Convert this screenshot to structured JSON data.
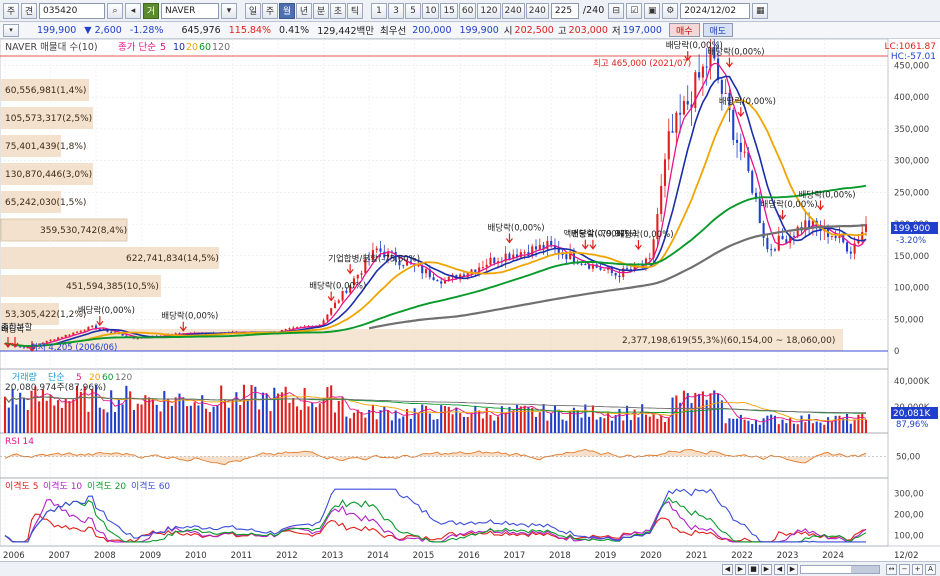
{
  "toolbar": {
    "mode_label": "주",
    "code_prefix": "견",
    "code": "035420",
    "search_icon": "magnifier-icon",
    "name_tag": "거",
    "name": "NAVER",
    "period_buttons": [
      "일",
      "주",
      "월",
      "년",
      "분",
      "초",
      "틱"
    ],
    "active_period": "월",
    "interval_buttons": [
      "1",
      "3",
      "5",
      "10",
      "15",
      "60",
      "120",
      "240",
      "240"
    ],
    "bar_count": "225",
    "bar_total": "/240",
    "date": "2024/12/02"
  },
  "quote": {
    "price": "199,900",
    "change": "▼  2,600",
    "change_rate": "-1.28%",
    "volume": "645,976",
    "vol_ratio": "115.84%",
    "turnover_rate": "0.41%",
    "amount": "129,442백만",
    "best_ask_label": "최우선",
    "best_ask": "200,000",
    "best_bid": "199,900",
    "open_label": "시",
    "open": "202,500",
    "high_label": "고",
    "high": "203,000",
    "low_label": "저",
    "low": "197,000",
    "buy_label": "매수",
    "sell_label": "매도"
  },
  "price_panel": {
    "legend_name": "NAVER 매물대 수(10)",
    "legend_ma_title": "종가 단순",
    "legend_ma_periods": [
      "5",
      "10",
      "20",
      "60",
      "120"
    ],
    "lc": "LC:1061.87",
    "hc": "HC:-57.01",
    "y_ticks": [
      "450,000",
      "400,000",
      "350,000",
      "300,000",
      "250,000",
      "200,000",
      "150,000",
      "100,000",
      "50,000",
      "0"
    ],
    "last_price": "199,900",
    "last_rate": "-3.20%",
    "high_note": "최고 465,000 (2021/07)",
    "profile_labels": [
      "60,556,981(1,4%)",
      "105,573,317(2,5%)",
      "75,401,439(1,8%)",
      "130,870,446(3,0%)",
      "65,242,030(1,5%)",
      "359,530,742(8,4%)",
      "622,741,834(14,5%)",
      "451,594,385(10,5%)",
      "53,305,422(1,2%)",
      "2,377,198,619(55,3%)(60,154,00 ~ 18,060,00)"
    ],
    "low_note": "최저 4,205 (2006/06)",
    "left_marks": [
      "종합분할",
      "배당락"
    ],
    "events": [
      {
        "text": "배당락(0,00%)",
        "date": "2008/02"
      },
      {
        "text": "배당락(0,00%)",
        "date": "2009/12"
      },
      {
        "text": "배당락(0,00%)",
        "date": "2013/03"
      },
      {
        "text": "기업합병/분할(-75,60%)",
        "date": "2013/08"
      },
      {
        "text": "배당락(0,00%)",
        "date": "2017/02"
      },
      {
        "text": "액면분할(-79,97%)",
        "date": "2018/10"
      },
      {
        "text": "배당락(0,00%)",
        "date": "2018/12"
      },
      {
        "text": "배당락(0,00%)",
        "date": "2019/12"
      },
      {
        "text": "배당락(0,00%)",
        "date": "2021/01"
      },
      {
        "text": "배당락(0,00%)",
        "date": "2021/12"
      },
      {
        "text": "배당락(0,00%)",
        "date": "2022/03"
      },
      {
        "text": "배당락(0,00%)",
        "date": "2023/02"
      },
      {
        "text": "배당락(0,00%)",
        "date": "2023/12"
      }
    ]
  },
  "volume_panel": {
    "legend_name": "거래량",
    "legend_ma_title": "단순",
    "legend_ma_periods": [
      "5",
      "20",
      "60",
      "120"
    ],
    "max_label": "20,080,974주(87,96%)",
    "y_ticks": [
      "40,000K",
      "20,000K"
    ],
    "last_value": "20,081K",
    "last_rate": "87,96%"
  },
  "rsi_panel": {
    "legend": "RSI 14",
    "y_ticks": [
      "50,00"
    ]
  },
  "disparity_panel": {
    "legend": [
      "이격도 5",
      "이격도 10",
      "이격도 20",
      "이격도 60"
    ],
    "y_ticks": [
      "300,00",
      "200,00",
      "100,00"
    ]
  },
  "x_axis": {
    "labels": [
      "2006",
      "2007",
      "2008",
      "2009",
      "2010",
      "2011",
      "2012",
      "2013",
      "2014",
      "2015",
      "2016",
      "2017",
      "2018",
      "2019",
      "2020",
      "2021",
      "2022",
      "2023",
      "2024"
    ],
    "last_label": "12/02"
  },
  "colors": {
    "up": "#e0201c",
    "down": "#1f3fcc",
    "ma5": "#e6148c",
    "ma10": "#1a2ea8",
    "ma20": "#f0a400",
    "ma60": "#0a9a2c",
    "ma120": "#707070",
    "profile": "#f1dcc4"
  },
  "chart_data": {
    "type": "candlestick",
    "title": "NAVER",
    "period": "monthly",
    "ylim": [
      0,
      465000
    ],
    "anchors": [
      {
        "date": "2006/01",
        "close": 12000
      },
      {
        "date": "2006/06",
        "close": 4205
      },
      {
        "date": "2007/12",
        "close": 38000
      },
      {
        "date": "2008/11",
        "close": 20000
      },
      {
        "date": "2009/12",
        "close": 28000
      },
      {
        "date": "2011/12",
        "close": 30000
      },
      {
        "date": "2012/12",
        "close": 42000
      },
      {
        "date": "2013/06",
        "close": 90000
      },
      {
        "date": "2014/03",
        "close": 160000
      },
      {
        "date": "2015/09",
        "close": 110000
      },
      {
        "date": "2016/12",
        "close": 150000
      },
      {
        "date": "2017/12",
        "close": 165000
      },
      {
        "date": "2018/06",
        "close": 150000
      },
      {
        "date": "2019/06",
        "close": 120000
      },
      {
        "date": "2020/03",
        "close": 140000
      },
      {
        "date": "2020/08",
        "close": 330000
      },
      {
        "date": "2021/07",
        "close": 465000
      },
      {
        "date": "2021/12",
        "close": 370000
      },
      {
        "date": "2022/06",
        "close": 260000
      },
      {
        "date": "2022/10",
        "close": 160000
      },
      {
        "date": "2023/08",
        "close": 200000
      },
      {
        "date": "2024/03",
        "close": 185000
      },
      {
        "date": "2024/08",
        "close": 160000
      },
      {
        "date": "2024/12",
        "close": 199900
      }
    ]
  },
  "bottom_bar": {
    "buttons": [
      "◀",
      "▶",
      "■",
      "▶",
      "◀",
      "▶"
    ],
    "right_buttons": [
      "↔",
      "−",
      "+",
      "A"
    ]
  }
}
